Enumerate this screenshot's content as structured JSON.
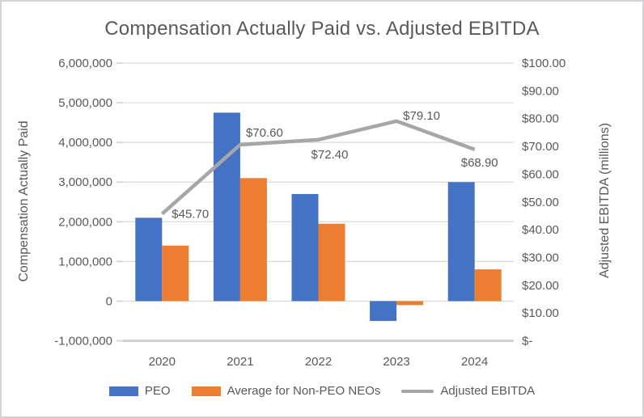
{
  "chart_data": {
    "type": "combo-bar-line",
    "title": "Compensation Actually Paid vs. Adjusted EBITDA",
    "categories": [
      "2020",
      "2021",
      "2022",
      "2023",
      "2024"
    ],
    "bar_series": [
      {
        "name": "PEO",
        "color": "#4472C4",
        "values": [
          2100000,
          4750000,
          2700000,
          -500000,
          3000000
        ]
      },
      {
        "name": "Average for Non-PEO NEOs",
        "color": "#ED7D31",
        "values": [
          1400000,
          3100000,
          1950000,
          -100000,
          800000
        ]
      }
    ],
    "line_series": {
      "name": "Adjusted EBITDA",
      "color": "#A6A6A6",
      "axis": "right",
      "values": [
        45.7,
        70.6,
        72.4,
        79.1,
        68.9
      ],
      "labels": [
        "$45.70",
        "$70.60",
        "$72.40",
        "$79.10",
        "$68.90"
      ]
    },
    "left_axis": {
      "title": "Compensation Actually Paid",
      "min": -1000000,
      "max": 6000000,
      "tick_labels": [
        "6,000,000",
        "5,000,000",
        "4,000,000",
        "3,000,000",
        "2,000,000",
        "1,000,000",
        "0",
        "-1,000,000"
      ]
    },
    "right_axis": {
      "title": "Adjusted EBITDA (millions)",
      "min": 0,
      "max": 100,
      "tick_labels": [
        "$100.00",
        "$90.00",
        "$80.00",
        "$70.00",
        "$60.00",
        "$50.00",
        "$40.00",
        "$30.00",
        "$20.00",
        "$10.00",
        "$-"
      ]
    },
    "legend": {
      "position": "bottom"
    },
    "grid": true,
    "colors": {
      "text": "#595959",
      "gridline": "#d9d9d9",
      "axis_line": "#d2d2d2"
    },
    "label_offsets": [
      [
        12,
        5,
        "start"
      ],
      [
        30,
        -10,
        "middle"
      ],
      [
        14,
        23,
        "middle"
      ],
      [
        31,
        -2,
        "middle"
      ],
      [
        6,
        21,
        "middle"
      ]
    ]
  }
}
